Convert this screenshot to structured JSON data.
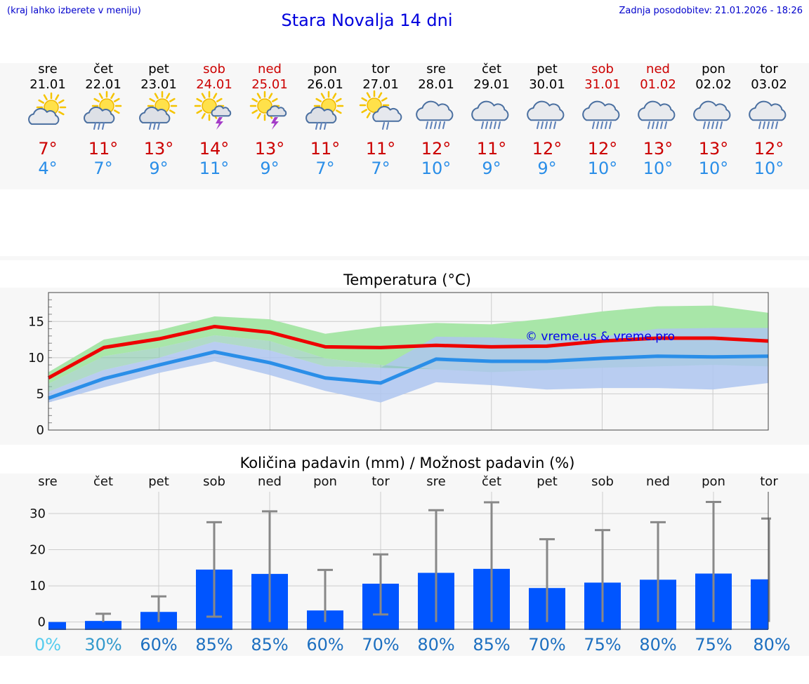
{
  "header": {
    "hint": "(kraj lahko izberete v meniju)",
    "title": "Stara Novalja 14 dni",
    "updated": "Zadnja posodobitev: 21.01.2026 - 18:26"
  },
  "days": [
    {
      "name": "sre",
      "date": "21.01",
      "weekend": false,
      "icon": "partly-cloudy-icon",
      "tmax": "7°",
      "tmin": "4°"
    },
    {
      "name": "čet",
      "date": "22.01",
      "weekend": false,
      "icon": "partly-cloudy-rain-icon",
      "tmax": "11°",
      "tmin": "7°"
    },
    {
      "name": "pet",
      "date": "23.01",
      "weekend": false,
      "icon": "partly-cloudy-rain-icon",
      "tmax": "13°",
      "tmin": "9°"
    },
    {
      "name": "sob",
      "date": "24.01",
      "weekend": true,
      "icon": "sun-thunderstorm-icon",
      "tmax": "14°",
      "tmin": "11°"
    },
    {
      "name": "ned",
      "date": "25.01",
      "weekend": true,
      "icon": "sun-thunderstorm-icon",
      "tmax": "13°",
      "tmin": "9°"
    },
    {
      "name": "pon",
      "date": "26.01",
      "weekend": false,
      "icon": "partly-cloudy-rain-icon",
      "tmax": "11°",
      "tmin": "7°"
    },
    {
      "name": "tor",
      "date": "27.01",
      "weekend": false,
      "icon": "sun-cloud-rain-icon",
      "tmax": "11°",
      "tmin": "7°"
    },
    {
      "name": "sre",
      "date": "28.01",
      "weekend": false,
      "icon": "cloud-rain-icon",
      "tmax": "12°",
      "tmin": "10°"
    },
    {
      "name": "čet",
      "date": "29.01",
      "weekend": false,
      "icon": "cloud-rain-icon",
      "tmax": "11°",
      "tmin": "9°"
    },
    {
      "name": "pet",
      "date": "30.01",
      "weekend": false,
      "icon": "cloud-rain-icon",
      "tmax": "12°",
      "tmin": "9°"
    },
    {
      "name": "sob",
      "date": "31.01",
      "weekend": true,
      "icon": "cloud-rain-icon",
      "tmax": "12°",
      "tmin": "10°"
    },
    {
      "name": "ned",
      "date": "01.02",
      "weekend": true,
      "icon": "cloud-rain-icon",
      "tmax": "13°",
      "tmin": "10°"
    },
    {
      "name": "pon",
      "date": "02.02",
      "weekend": false,
      "icon": "cloud-rain-icon",
      "tmax": "13°",
      "tmin": "10°"
    },
    {
      "name": "tor",
      "date": "03.02",
      "weekend": false,
      "icon": "cloud-rain-icon",
      "tmax": "12°",
      "tmin": "10°"
    }
  ],
  "colors": {
    "max_line": "#ee0000",
    "min_line": "#2a8ee8",
    "max_band": "#a8e6a8",
    "min_band": "#aec6f0",
    "overlap_band": "#80c6a8",
    "bar": "#0055ff",
    "whisker": "#888888",
    "weekend": "#cc0000",
    "title": "#0000dd"
  },
  "chart_data": [
    {
      "type": "line",
      "title": "Temperatura (°C)",
      "watermark": "© vreme.us & vreme.pro",
      "x": [
        0,
        1,
        2,
        3,
        4,
        5,
        6,
        7,
        8,
        9,
        10,
        11,
        12,
        13
      ],
      "ylim": [
        0,
        19
      ],
      "yticks": [
        "0",
        "5",
        "10",
        "15"
      ],
      "ytick_values": [
        0,
        5,
        10,
        15
      ],
      "series": [
        {
          "name": "max",
          "values": [
            7.2,
            11.4,
            12.6,
            14.3,
            13.5,
            11.5,
            11.4,
            11.7,
            11.5,
            11.6,
            12.3,
            12.7,
            12.7,
            12.3
          ],
          "band_low": [
            6.4,
            10.2,
            11.4,
            13.1,
            12.3,
            9.9,
            9.0,
            8.4,
            8.0,
            8.3,
            8.6,
            8.8,
            9.0,
            8.8
          ],
          "band_high": [
            8.0,
            12.5,
            13.8,
            15.7,
            15.3,
            13.3,
            14.3,
            14.8,
            14.6,
            15.4,
            16.4,
            17.1,
            17.2,
            16.2
          ]
        },
        {
          "name": "min",
          "values": [
            4.4,
            7.1,
            9.0,
            10.8,
            9.3,
            7.2,
            6.5,
            9.8,
            9.5,
            9.5,
            9.9,
            10.2,
            10.1,
            10.2
          ],
          "band_low": [
            3.8,
            5.9,
            7.9,
            9.5,
            7.6,
            5.4,
            3.8,
            6.6,
            6.2,
            5.6,
            5.8,
            5.8,
            5.6,
            6.5
          ],
          "band_high": [
            5.3,
            8.3,
            10.0,
            12.2,
            11.0,
            8.8,
            8.6,
            12.9,
            12.8,
            12.4,
            12.9,
            14.0,
            14.1,
            14.1
          ]
        }
      ]
    },
    {
      "type": "bar",
      "title": "Količina padavin (mm) / Možnost padavin (%)",
      "categories": [
        "sre",
        "čet",
        "pet",
        "sob",
        "ned",
        "pon",
        "tor",
        "sre",
        "čet",
        "pet",
        "sob",
        "ned",
        "pon",
        "tor"
      ],
      "values": [
        0,
        0.3,
        2.8,
        14.5,
        13.3,
        3.2,
        10.6,
        13.6,
        14.7,
        9.4,
        10.9,
        11.7,
        13.4,
        11.8
      ],
      "err_low": [
        0,
        0,
        0,
        1.5,
        0,
        0,
        2.1,
        0,
        0,
        0,
        0,
        0,
        0,
        0
      ],
      "err_high": [
        0,
        2.3,
        7.1,
        27.6,
        30.6,
        14.4,
        18.7,
        30.9,
        33.1,
        22.9,
        25.4,
        27.6,
        33.2,
        28.6
      ],
      "probability": [
        "0%",
        "30%",
        "60%",
        "85%",
        "85%",
        "60%",
        "70%",
        "80%",
        "85%",
        "70%",
        "75%",
        "80%",
        "75%",
        "80%"
      ],
      "probability_colors": [
        "#55ccee",
        "#3399cc",
        "#1c6fc0",
        "#1c6fc0",
        "#1c6fc0",
        "#1c6fc0",
        "#1c6fc0",
        "#1c6fc0",
        "#1c6fc0",
        "#1c6fc0",
        "#1c6fc0",
        "#1c6fc0",
        "#1c6fc0",
        "#1c6fc0"
      ],
      "ylim": [
        -2,
        36
      ],
      "yticks": [
        "0",
        "10",
        "20",
        "30"
      ],
      "ytick_values": [
        0,
        10,
        20,
        30
      ]
    }
  ]
}
